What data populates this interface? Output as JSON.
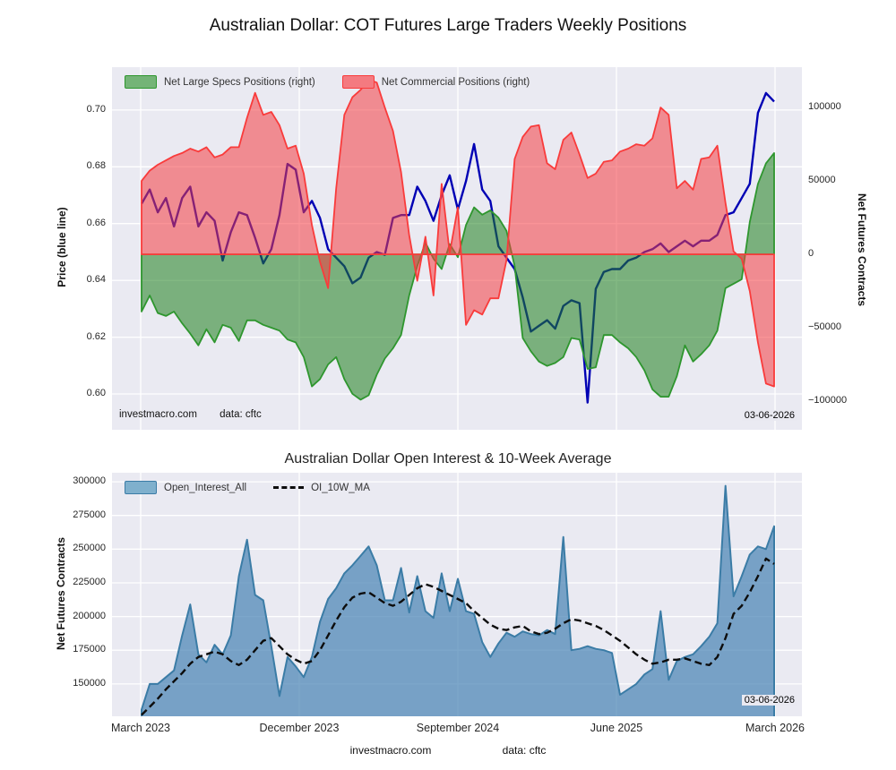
{
  "header": {
    "title": "Australian Dollar: COT Futures Large Traders Weekly Positions"
  },
  "chart1": {
    "legend": [
      {
        "name": "net-large-specs",
        "label": "Net Large Specs Positions (right)",
        "color": "#2e962e"
      },
      {
        "name": "net-commercial",
        "label": "Net Commercial Positions (right)",
        "color": "#f93b3b"
      }
    ],
    "ylabel_left": "Price (blue line)",
    "ylabel_right": "Net Futures Contracts",
    "watermark": "investmacro.com",
    "source": "data: cftc",
    "date_stamp": "03-06-2026"
  },
  "chart2": {
    "title": "Australian Dollar Open Interest & 10-Week Average",
    "legend": [
      {
        "name": "open-interest",
        "label": "Open_Interest_All",
        "color": "#3b7ca6"
      },
      {
        "name": "oi-ma",
        "label": "OI_10W_MA",
        "color": "#0d0d0d"
      }
    ],
    "ylabel_left": "Net Futures Contracts",
    "watermark": "investmacro.com",
    "source": "data: cftc",
    "date_stamp": "03-06-2026"
  },
  "footer": {
    "watermark": "investmacro.com",
    "source": "data: cftc"
  },
  "chart_data": [
    {
      "type": "area",
      "title": "Australian Dollar: COT Futures Large Traders Weekly Positions",
      "x_desc": "weekly, March 2023 to March 2026 (last point 03-06-2026)",
      "x_tick_labels": [
        "March 2023",
        "December 2023",
        "September 2024",
        "June 2025",
        "March 2026"
      ],
      "ylabel_left": "Price (blue line)",
      "ylabel_right": "Net Futures Contracts",
      "yticks_price": [
        0.7,
        0.68,
        0.66,
        0.64,
        0.62,
        0.6
      ],
      "yticks_contracts": [
        100000,
        50000,
        0,
        -50000,
        -100000
      ],
      "ylim_price": [
        0.5874,
        0.7151
      ],
      "ylim_contracts": [
        -119500,
        127500
      ],
      "grid": true,
      "legend_position": "top-left",
      "series": [
        {
          "name": "Net Large Specs Positions (right)",
          "axis": "right",
          "style": "area-green",
          "values": [
            -39000,
            -28000,
            -40000,
            -42000,
            -39000,
            -47000,
            -54000,
            -62000,
            -51000,
            -60000,
            -48000,
            -50000,
            -59000,
            -45000,
            -45000,
            -48000,
            -50000,
            -52000,
            -58000,
            -60000,
            -70000,
            -90000,
            -85000,
            -75000,
            -70000,
            -85000,
            -95000,
            -99000,
            -96000,
            -82000,
            -71000,
            -64000,
            -55000,
            -28000,
            -8000,
            8000,
            -3000,
            -10000,
            7000,
            -2000,
            20000,
            32000,
            27000,
            30000,
            25000,
            16000,
            -8000,
            -57000,
            -66000,
            -73000,
            -76000,
            -74000,
            -70000,
            -57000,
            -58000,
            -78000,
            -77000,
            -55000,
            -55000,
            -60000,
            -64000,
            -70000,
            -79000,
            -92000,
            -97000,
            -97000,
            -83000,
            -62000,
            -73000,
            -68000,
            -62000,
            -52000,
            -23000,
            -20000,
            -17000,
            22000,
            48000,
            62000,
            69000
          ]
        },
        {
          "name": "Net Commercial Positions (right)",
          "axis": "right",
          "style": "area-red",
          "values": [
            50000,
            57000,
            61000,
            64000,
            67000,
            69000,
            72000,
            70000,
            73000,
            66000,
            68000,
            73000,
            73000,
            93000,
            110000,
            95000,
            97000,
            88000,
            72000,
            74000,
            55000,
            20000,
            -5000,
            -23000,
            45000,
            95000,
            107000,
            112000,
            119000,
            117000,
            100000,
            84000,
            56000,
            13000,
            -18000,
            12000,
            -28000,
            48000,
            1000,
            32000,
            -48000,
            -38000,
            -41000,
            -30000,
            -30000,
            -4000,
            65000,
            80000,
            87000,
            88000,
            62000,
            58000,
            78000,
            83000,
            68000,
            52000,
            55000,
            63000,
            64000,
            70000,
            72000,
            75000,
            74000,
            79000,
            100000,
            95000,
            45000,
            50000,
            44000,
            65000,
            66000,
            74000,
            35000,
            2000,
            -3000,
            -25000,
            -60000,
            -88000,
            -90000
          ]
        },
        {
          "name": "Price",
          "axis": "left",
          "style": "line-blue",
          "values": [
            0.667,
            0.672,
            0.664,
            0.669,
            0.659,
            0.669,
            0.673,
            0.659,
            0.664,
            0.661,
            0.647,
            0.657,
            0.664,
            0.663,
            0.655,
            0.646,
            0.651,
            0.663,
            0.681,
            0.679,
            0.664,
            0.668,
            0.662,
            0.651,
            0.648,
            0.645,
            0.639,
            0.641,
            0.648,
            0.65,
            0.649,
            0.662,
            0.663,
            0.663,
            0.673,
            0.668,
            0.661,
            0.67,
            0.677,
            0.665,
            0.675,
            0.688,
            0.672,
            0.668,
            0.652,
            0.648,
            0.644,
            0.634,
            0.622,
            0.624,
            0.626,
            0.623,
            0.631,
            0.633,
            0.632,
            0.597,
            0.637,
            0.643,
            0.644,
            0.644,
            0.647,
            0.648,
            0.65,
            0.651,
            0.653,
            0.65,
            0.652,
            0.654,
            0.652,
            0.654,
            0.654,
            0.656,
            0.663,
            0.664,
            0.669,
            0.674,
            0.699,
            0.706,
            0.703
          ]
        }
      ]
    },
    {
      "type": "area",
      "title": "Australian Dollar Open Interest & 10-Week Average",
      "x_desc": "weekly, March 2023 to March 2026 (last point 03-06-2026)",
      "x_tick_labels": [
        "March 2023",
        "December 2023",
        "September 2024",
        "June 2025",
        "March 2026"
      ],
      "ylabel": "Net Futures Contracts",
      "yticks": [
        300000,
        275000,
        250000,
        225000,
        200000,
        175000,
        150000
      ],
      "ylim": [
        126000,
        306700
      ],
      "grid": true,
      "legend_position": "top-left",
      "series": [
        {
          "name": "Open_Interest_All",
          "style": "area-steelblue",
          "values": [
            131000,
            150000,
            150000,
            155000,
            160000,
            186000,
            209000,
            172000,
            166000,
            179000,
            172000,
            186000,
            230000,
            257000,
            216000,
            212000,
            178000,
            141000,
            170000,
            163000,
            155000,
            170000,
            196000,
            213000,
            221000,
            232000,
            238000,
            245000,
            252000,
            238000,
            212000,
            212000,
            236000,
            203000,
            230000,
            204000,
            199000,
            232000,
            204000,
            228000,
            204000,
            202000,
            181000,
            170000,
            180000,
            188000,
            185000,
            189000,
            187000,
            186000,
            190000,
            187000,
            259000,
            175000,
            176000,
            178000,
            176000,
            175000,
            173000,
            142000,
            146000,
            150000,
            157000,
            161000,
            204000,
            153000,
            167000,
            170000,
            172000,
            178000,
            185000,
            195000,
            297000,
            215000,
            230000,
            246000,
            252000,
            250000,
            267000
          ]
        },
        {
          "name": "OI_10W_MA",
          "style": "dashed-black",
          "values": [
            127000,
            133000,
            139000,
            146000,
            152000,
            158000,
            165000,
            170000,
            172000,
            174000,
            172000,
            167000,
            164000,
            168000,
            175000,
            182000,
            184000,
            178000,
            172000,
            168000,
            165000,
            167000,
            175000,
            186000,
            197000,
            207000,
            214000,
            217000,
            218000,
            214000,
            210000,
            208000,
            211000,
            216000,
            221000,
            224000,
            222000,
            219000,
            216000,
            213000,
            210000,
            204000,
            199000,
            194000,
            191000,
            190000,
            192000,
            193000,
            189000,
            187000,
            188000,
            191000,
            195000,
            198000,
            197000,
            195000,
            193000,
            190000,
            186000,
            182000,
            177000,
            172000,
            168000,
            165000,
            166000,
            168000,
            168000,
            169000,
            167000,
            165000,
            164000,
            170000,
            184000,
            202000,
            208000,
            218000,
            230000,
            243000,
            239000
          ]
        }
      ]
    }
  ]
}
